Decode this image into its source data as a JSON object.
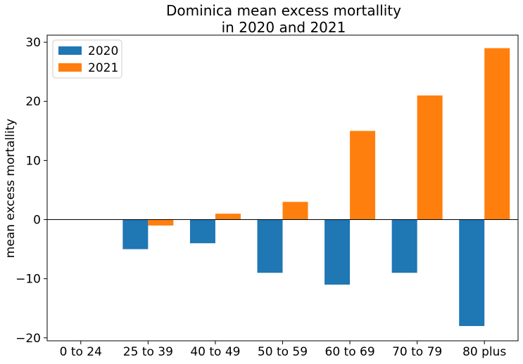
{
  "chart_data": {
    "type": "bar",
    "title_line1": "Dominica mean excess mortallity",
    "title_line2": "in 2020 and 2021",
    "xlabel": "",
    "ylabel": "mean excess mortallity",
    "categories": [
      "0 to 24",
      "25 to 39",
      "40 to 49",
      "50 to 59",
      "60 to 69",
      "70 to 79",
      "80 plus"
    ],
    "series": [
      {
        "name": "2020",
        "color": "#1f77b4",
        "values": [
          0,
          -5,
          -4,
          -9,
          -11,
          -9,
          -18
        ]
      },
      {
        "name": "2021",
        "color": "#ff7f0e",
        "values": [
          0,
          -1,
          1,
          3,
          15,
          21,
          29
        ]
      }
    ],
    "ylim": [
      -20.5,
      31.2
    ],
    "yticks": [
      -20,
      -10,
      0,
      10,
      20,
      30
    ],
    "ytick_labels": [
      "−20",
      "−10",
      "0",
      "10",
      "20",
      "30"
    ],
    "grid": false,
    "legend_position": "top-left",
    "zero_line": true
  }
}
